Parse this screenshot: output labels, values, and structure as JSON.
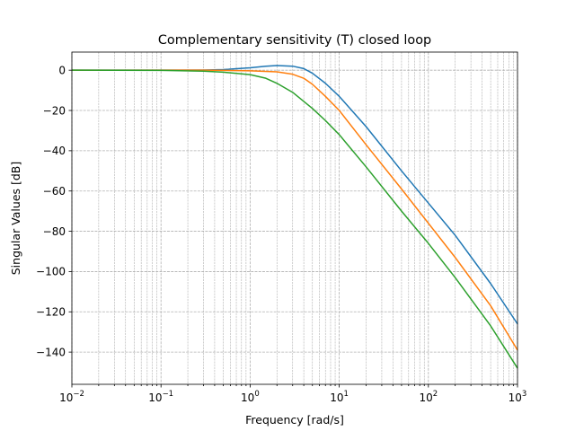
{
  "chart_data": {
    "type": "line",
    "title": "Complementary sensitivity (T) closed loop",
    "xlabel": "Frequency [rad/s]",
    "ylabel": "Singular Values [dB]",
    "xscale": "log",
    "xlim": [
      0.01,
      1000
    ],
    "ylim": [
      -156,
      9
    ],
    "grid": "major and minor, dashed",
    "xticks": [
      {
        "base": "10",
        "exp": "−2",
        "value": 0.01
      },
      {
        "base": "10",
        "exp": "−1",
        "value": 0.1
      },
      {
        "base": "10",
        "exp": "0",
        "value": 1
      },
      {
        "base": "10",
        "exp": "1",
        "value": 10
      },
      {
        "base": "10",
        "exp": "2",
        "value": 100
      },
      {
        "base": "10",
        "exp": "3",
        "value": 1000
      }
    ],
    "yticks": [
      {
        "label": "0",
        "value": 0
      },
      {
        "label": "−20",
        "value": -20
      },
      {
        "label": "−40",
        "value": -40
      },
      {
        "label": "−60",
        "value": -60
      },
      {
        "label": "−80",
        "value": -80
      },
      {
        "label": "−100",
        "value": -100
      },
      {
        "label": "−120",
        "value": -120
      },
      {
        "label": "−140",
        "value": -140
      }
    ],
    "series": [
      {
        "color": "#1f77b4",
        "x": [
          0.01,
          0.1,
          0.3,
          0.5,
          1,
          1.5,
          2,
          3,
          4,
          5,
          7,
          10,
          20,
          50,
          100,
          200,
          500,
          1000
        ],
        "y": [
          0,
          0,
          0.1,
          0.3,
          1.2,
          2.0,
          2.3,
          2.0,
          0.8,
          -1.5,
          -6.5,
          -13,
          -28,
          -50,
          -66,
          -82,
          -106,
          -126
        ]
      },
      {
        "color": "#ff7f0e",
        "x": [
          0.01,
          0.1,
          0.3,
          0.5,
          1,
          2,
          3,
          4,
          5,
          7,
          10,
          20,
          50,
          100,
          200,
          500,
          1000
        ],
        "y": [
          0,
          0,
          0,
          -0.1,
          -0.3,
          -0.8,
          -2,
          -4,
          -7,
          -13,
          -20,
          -37,
          -59,
          -76,
          -93,
          -117,
          -139
        ]
      },
      {
        "color": "#2ca02c",
        "x": [
          0.01,
          0.1,
          0.3,
          0.5,
          1,
          1.5,
          2,
          3,
          5,
          7,
          10,
          20,
          50,
          100,
          200,
          500,
          1000
        ],
        "y": [
          0,
          -0.1,
          -0.5,
          -1,
          -2.2,
          -4,
          -6.5,
          -11,
          -19,
          -25,
          -32,
          -48,
          -70,
          -86,
          -103,
          -127,
          -148
        ]
      }
    ]
  }
}
